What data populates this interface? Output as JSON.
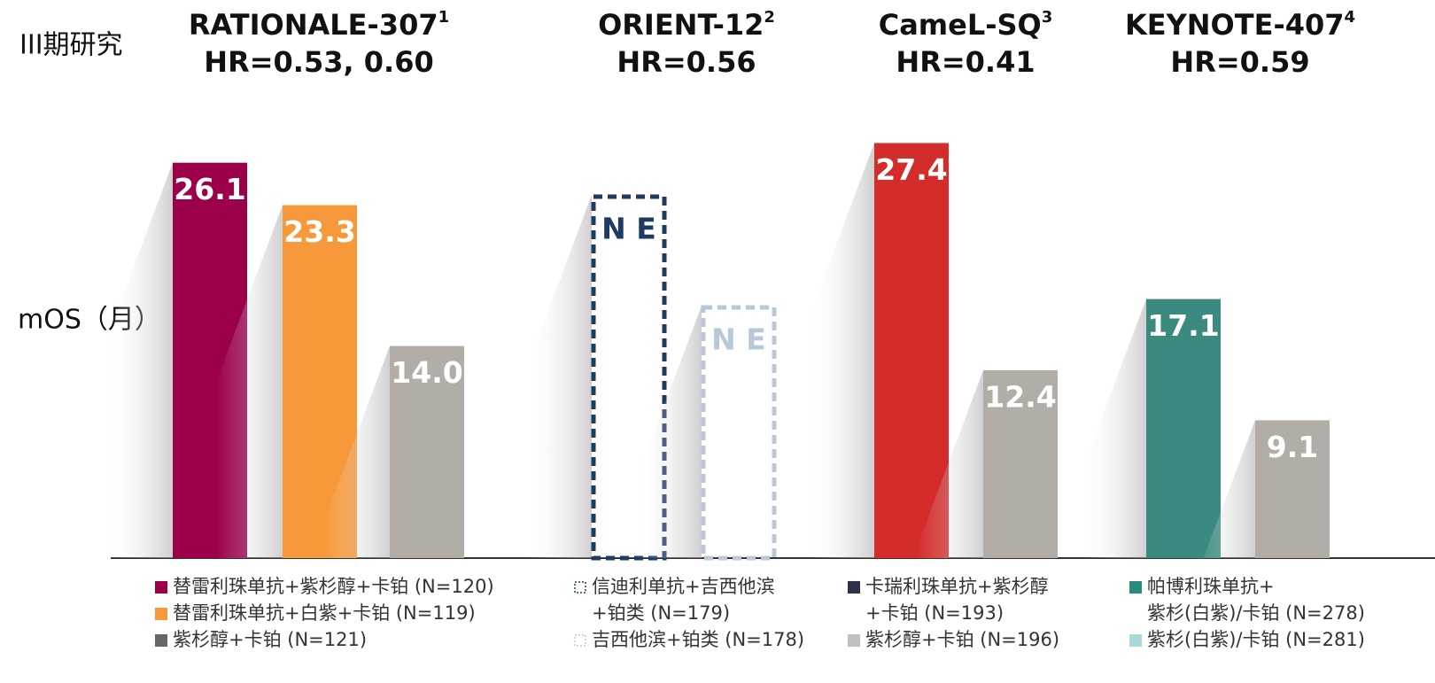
{
  "chart_data": {
    "type": "bar",
    "study_label": "III期研究",
    "y_label": "mOS（月）",
    "groups": [
      {
        "title": "RATIONALE-307",
        "ref": "1",
        "hr": "HR=0.53, 0.60",
        "bars": [
          {
            "value": 26.1,
            "value_label": "26.1",
            "color": "#9b0048",
            "style": "solid"
          },
          {
            "value": 23.3,
            "value_label": "23.3",
            "color": "#f7993a",
            "style": "solid"
          },
          {
            "value": 14.0,
            "value_label": "14.0",
            "color": "#b3ada8",
            "style": "solid"
          }
        ],
        "legend": [
          {
            "lines": [
              "替雷利珠单抗+紫杉醇+卡铂 (N=120)"
            ],
            "color": "#9b0048",
            "style": "solid"
          },
          {
            "lines": [
              "替雷利珠单抗+白紫+卡铂 (N=119)"
            ],
            "color": "#f7993a",
            "style": "solid"
          },
          {
            "lines": [
              "紫杉醇+卡铂 (N=121)"
            ],
            "color": "#666666",
            "style": "solid"
          }
        ]
      },
      {
        "title": "ORIENT-12",
        "ref": "2",
        "hr": "HR=0.56",
        "bars": [
          {
            "value": null,
            "value_label": "N E",
            "color": "#1f3b63",
            "style": "dashed"
          },
          {
            "value": null,
            "value_label": "N E",
            "color": "#b8c8d8",
            "style": "dashed"
          }
        ],
        "legend": [
          {
            "lines": [
              "信迪利单抗+吉西他滨",
              "+铂类 (N=179)"
            ],
            "color": "#1f3b63",
            "style": "dashed"
          },
          {
            "lines": [
              "吉西他滨+铂类 (N=178)"
            ],
            "color": "#b8c8d8",
            "style": "dashed"
          }
        ]
      },
      {
        "title": "CameL-SQ",
        "ref": "3",
        "hr": "HR=0.41",
        "bars": [
          {
            "value": 27.4,
            "value_label": "27.4",
            "color": "#d42b2b",
            "style": "solid"
          },
          {
            "value": 12.4,
            "value_label": "12.4",
            "color": "#b3ada8",
            "style": "solid"
          }
        ],
        "legend": [
          {
            "lines": [
              "卡瑞利珠单抗+紫杉醇",
              "+卡铂 (N=193)"
            ],
            "color": "#2d3147",
            "style": "solid"
          },
          {
            "lines": [
              "紫杉醇+卡铂 (N=196)"
            ],
            "color": "#bfbfc4",
            "style": "solid"
          }
        ]
      },
      {
        "title": "KEYNOTE-407",
        "ref": "4",
        "hr": "HR=0.59",
        "bars": [
          {
            "value": 17.1,
            "value_label": "17.1",
            "color": "#3a8a80",
            "style": "solid"
          },
          {
            "value": 9.1,
            "value_label": "9.1",
            "color": "#b3ada8",
            "style": "solid"
          }
        ],
        "legend": [
          {
            "lines": [
              "帕博利珠单抗+",
              "紫杉(白紫)/卡铂 (N=278)"
            ],
            "color": "#2a8a80",
            "style": "solid"
          },
          {
            "lines": [
              "紫杉(白紫)/卡铂 (N=281)"
            ],
            "color": "#a8d8d8",
            "style": "solid"
          }
        ]
      }
    ]
  }
}
